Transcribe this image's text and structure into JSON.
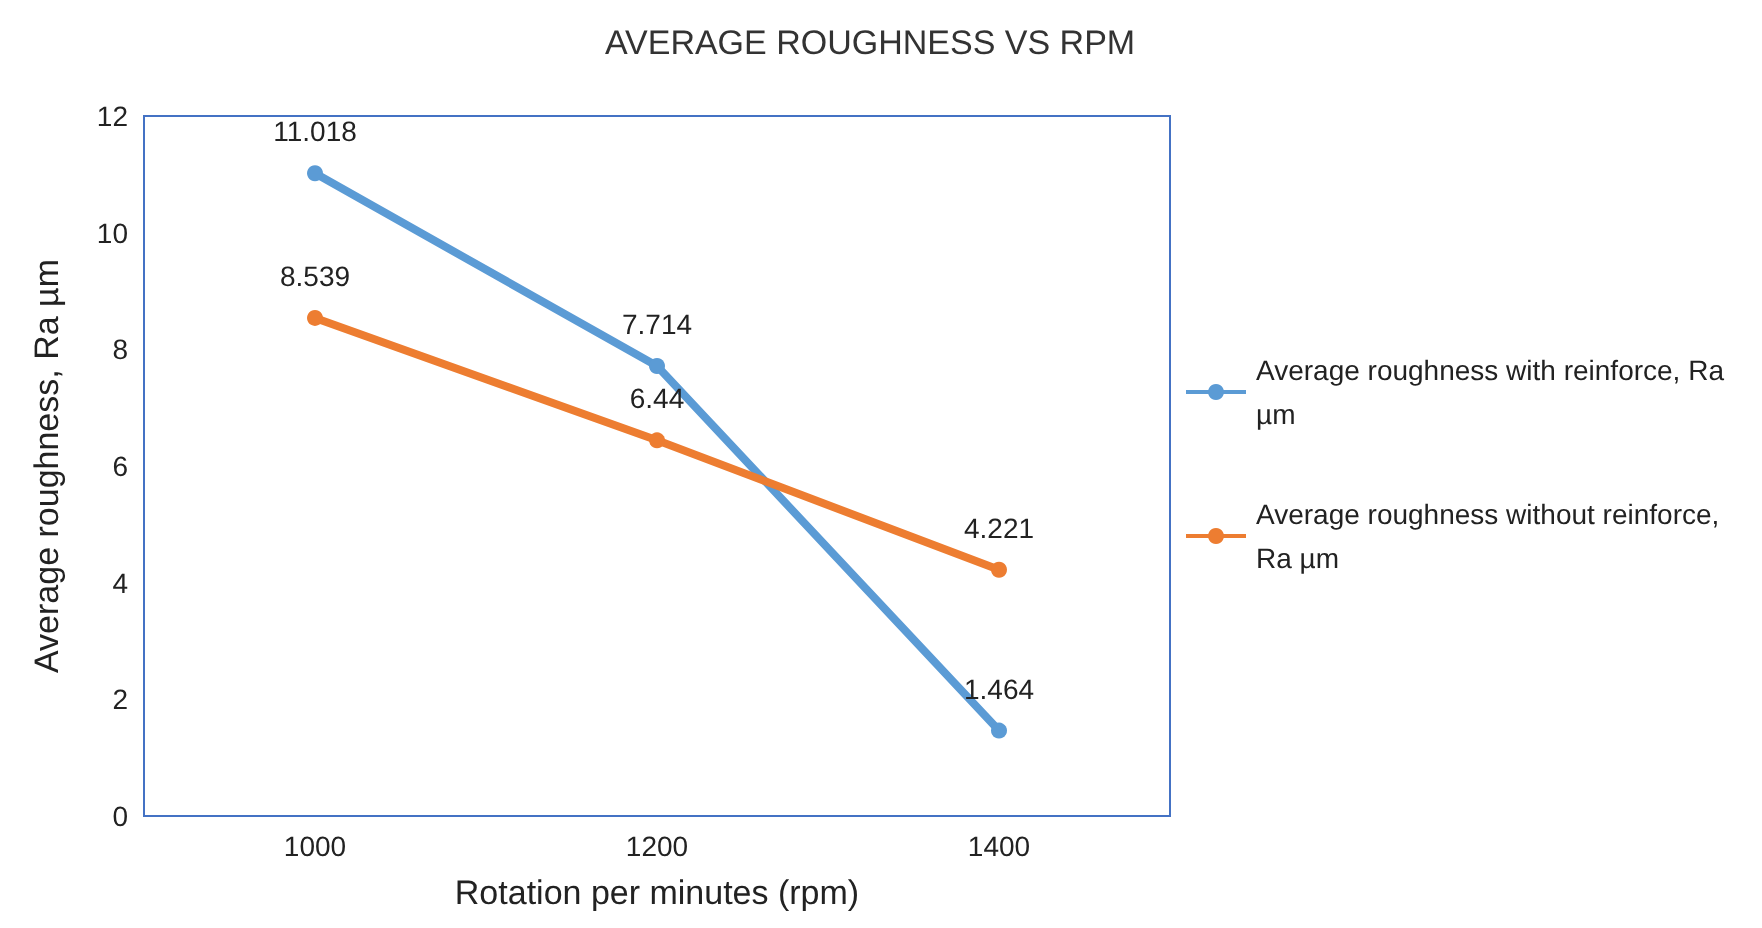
{
  "chart_data": {
    "type": "line",
    "title": "AVERAGE ROUGHNESS VS RPM",
    "xlabel": "Rotation per minutes (rpm)",
    "ylabel": "Average roughness, Ra µm",
    "categories": [
      "1000",
      "1200",
      "1400"
    ],
    "series": [
      {
        "name": "Average roughness with reinforce, Ra µm",
        "color": "#5b9bd5",
        "values": [
          11.018,
          7.714,
          1.464
        ]
      },
      {
        "name": "Average roughness without reinforce, Ra µm",
        "color": "#ed7d31",
        "values": [
          8.539,
          6.44,
          4.221
        ]
      }
    ],
    "ylim": [
      0,
      12
    ],
    "yticks": [
      0,
      2,
      4,
      6,
      8,
      10,
      12
    ],
    "data_labels": true,
    "legend": "right",
    "marker": "circle"
  }
}
